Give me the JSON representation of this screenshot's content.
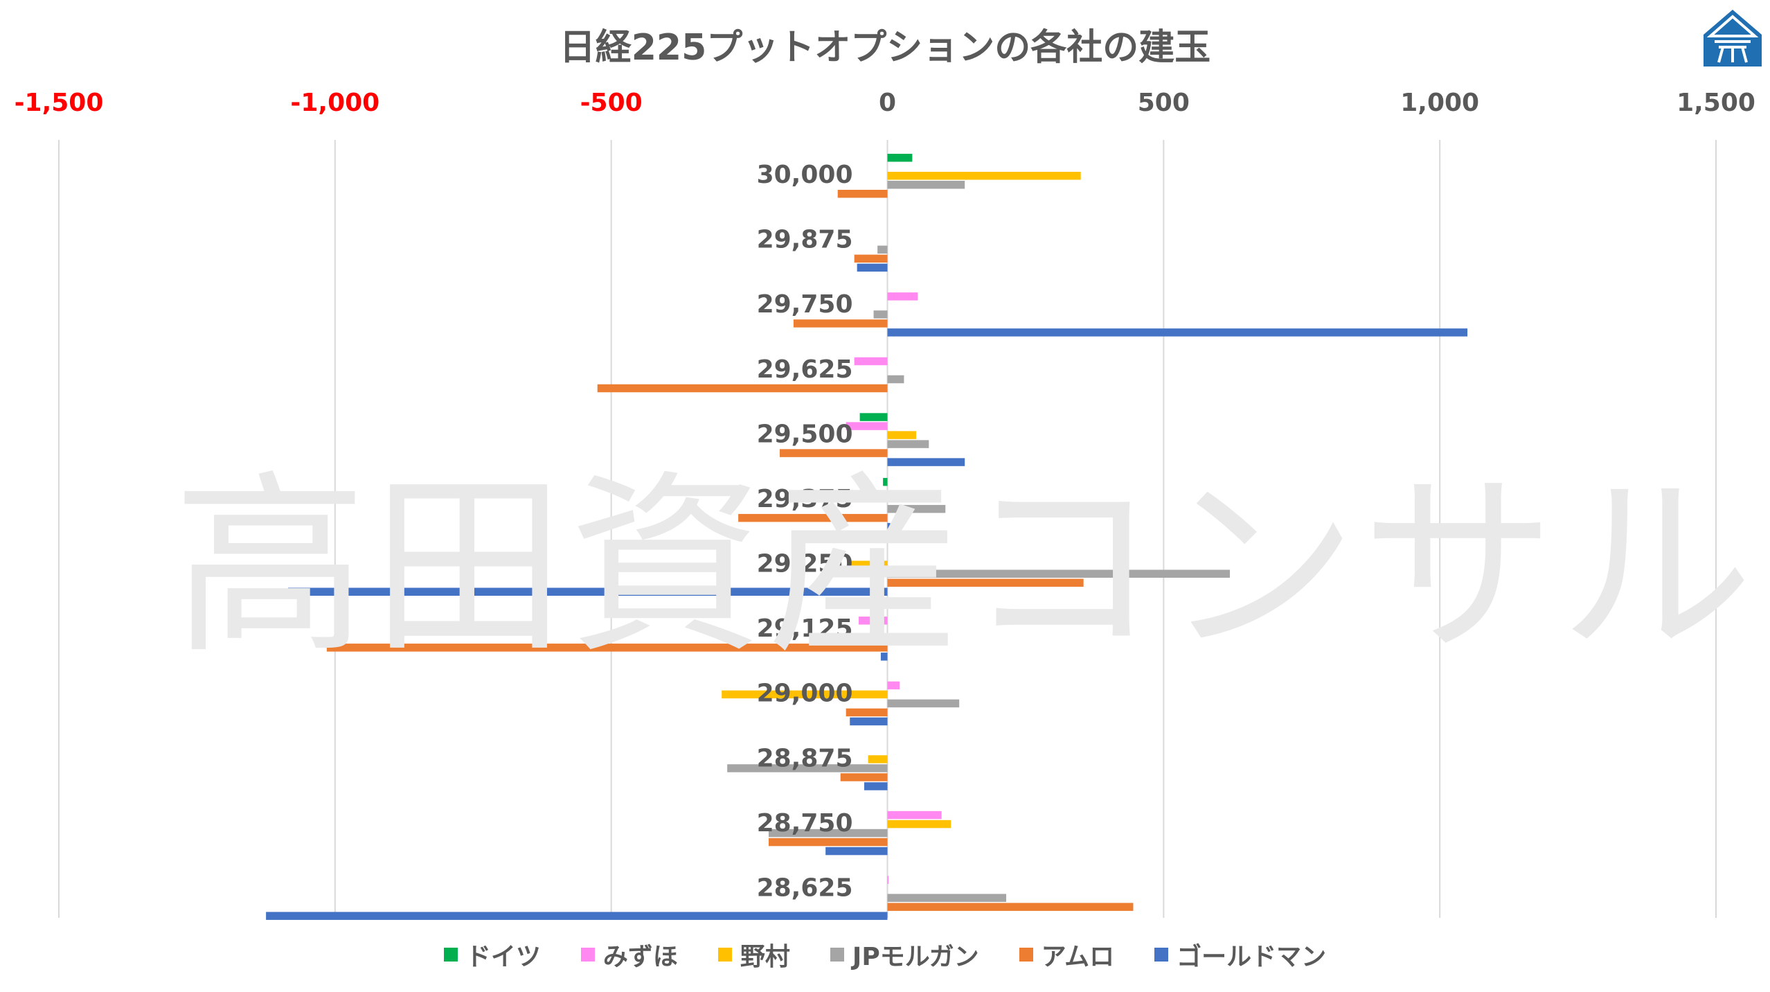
{
  "chart_data": {
    "type": "bar",
    "orientation": "horizontal",
    "title": "日経225プットオプションの各社の建玉",
    "watermark": "高田資産コンサル",
    "xlim": [
      -1500,
      1500
    ],
    "x_ticks": [
      -1500,
      -1000,
      -500,
      0,
      500,
      1000,
      1500
    ],
    "x_tick_labels": [
      "-1,500",
      "-1,000",
      "-500",
      "0",
      "500",
      "1,000",
      "1,500"
    ],
    "negative_tick_color": "#ff0000",
    "tick_color": "#595959",
    "grid": "vertical",
    "legend_position": "bottom",
    "categories": [
      "30,000",
      "29,875",
      "29,750",
      "29,625",
      "29,500",
      "29,375",
      "29,250",
      "29,125",
      "29,000",
      "28,875",
      "28,750",
      "28,625"
    ],
    "series": [
      {
        "name": "ドイツ",
        "color": "#00b050",
        "values": [
          45,
          0,
          0,
          0,
          -50,
          -8,
          0,
          0,
          0,
          0,
          0,
          0
        ]
      },
      {
        "name": "みずほ",
        "color": "#ff89f0",
        "values": [
          0,
          0,
          55,
          -60,
          -75,
          0,
          0,
          -52,
          22,
          0,
          98,
          2
        ]
      },
      {
        "name": "野村",
        "color": "#ffc000",
        "values": [
          350,
          0,
          0,
          0,
          52,
          0,
          -65,
          0,
          -300,
          -35,
          115,
          0
        ]
      },
      {
        "name": "JPモルガン",
        "color": "#a5a5a5",
        "values": [
          140,
          -18,
          -25,
          30,
          75,
          105,
          620,
          50,
          130,
          -290,
          -215,
          215
        ]
      },
      {
        "name": "アムロ",
        "color": "#ed7d31",
        "values": [
          -90,
          -60,
          -170,
          -525,
          -195,
          -270,
          355,
          -1015,
          -75,
          -85,
          -215,
          445
        ]
      },
      {
        "name": "ゴールドマン",
        "color": "#4472c4",
        "values": [
          0,
          -55,
          1050,
          0,
          140,
          5,
          -1085,
          -12,
          -68,
          -42,
          -112,
          -1125
        ]
      }
    ]
  },
  "brand": {
    "logo": "takada-logo-icon",
    "logo_color": "#1f6fb2"
  }
}
